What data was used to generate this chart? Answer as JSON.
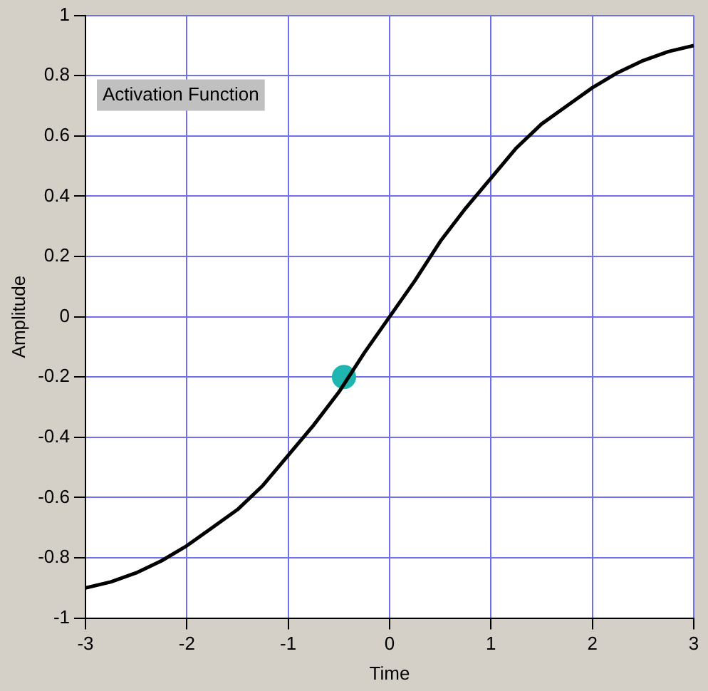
{
  "chart_data": {
    "type": "line",
    "xlabel": "Time",
    "ylabel": "Amplitude",
    "annotations": [
      "Activation Function"
    ],
    "xlim": [
      -3,
      3
    ],
    "xticks": [
      -3,
      -2,
      -1,
      0,
      1,
      2,
      3
    ],
    "ylim": [
      -1,
      1
    ],
    "yticks": [
      -1,
      -0.8,
      -0.6,
      -0.4,
      -0.2,
      0,
      0.2,
      0.4,
      0.6,
      0.8,
      1
    ],
    "grid": true,
    "legend": false,
    "marker": "none",
    "line_style": "solid",
    "series": [
      {
        "type": "line",
        "color": "#000000",
        "x": [
          -3,
          -2.75,
          -2.5,
          -2.25,
          -2,
          -1.75,
          -1.5,
          -1.25,
          -1,
          -0.75,
          -0.5,
          -0.25,
          0,
          0.25,
          0.5,
          0.75,
          1,
          1.25,
          1.5,
          1.75,
          2,
          2.25,
          2.5,
          2.75,
          3
        ],
        "values": [
          -0.9,
          -0.88,
          -0.85,
          -0.81,
          -0.76,
          -0.7,
          -0.64,
          -0.56,
          -0.46,
          -0.36,
          -0.25,
          -0.12,
          0,
          0.12,
          0.25,
          0.36,
          0.46,
          0.56,
          0.64,
          0.7,
          0.76,
          0.81,
          0.85,
          0.88,
          0.9
        ]
      },
      {
        "type": "scatter",
        "color": "#1fb5b0",
        "marker": "circle",
        "x": [
          -0.45
        ],
        "values": [
          -0.2
        ]
      }
    ]
  }
}
